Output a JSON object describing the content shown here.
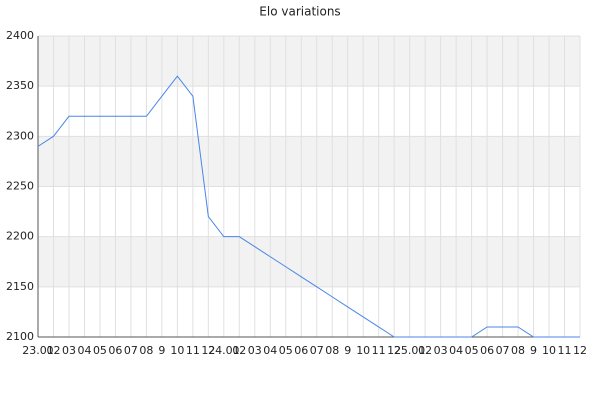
{
  "chart_data": {
    "type": "line",
    "title": "Elo variations",
    "categories": [
      "23.01",
      "02",
      "03",
      "04",
      "05",
      "06",
      "07",
      "08",
      "9",
      "10",
      "11",
      "12",
      "24.01",
      "02",
      "03",
      "04",
      "05",
      "06",
      "07",
      "08",
      "9",
      "10",
      "11",
      "12",
      "25.01",
      "02",
      "03",
      "04",
      "05",
      "06",
      "07",
      "08",
      "9",
      "10",
      "11",
      "12"
    ],
    "series": [
      {
        "name": "Elo",
        "color": "#4a86e8",
        "values": [
          2290,
          2300,
          2320,
          2320,
          2320,
          2320,
          2320,
          2320,
          2340,
          2360,
          2340,
          2220,
          2200,
          2200,
          2190,
          2180,
          2170,
          2160,
          2150,
          2140,
          2130,
          2120,
          2110,
          2100,
          2100,
          2100,
          2100,
          2100,
          2100,
          2110,
          2110,
          2110,
          2100,
          2100,
          2100,
          2100
        ]
      }
    ],
    "ylim": [
      2100,
      2400
    ],
    "yticks": [
      2100,
      2150,
      2200,
      2250,
      2300,
      2350,
      2400
    ],
    "grid": true
  }
}
